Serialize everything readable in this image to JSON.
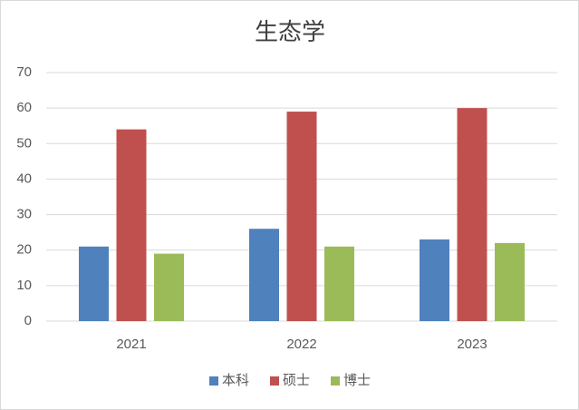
{
  "chart_data": {
    "type": "bar",
    "title": "生态学",
    "categories": [
      "2021",
      "2022",
      "2023"
    ],
    "series": [
      {
        "name": "本科",
        "color": "#4f81bd",
        "values": [
          21,
          26,
          23
        ]
      },
      {
        "name": "硕士",
        "color": "#c0504d",
        "values": [
          54,
          59,
          60
        ]
      },
      {
        "name": "博士",
        "color": "#9bbb59",
        "values": [
          19,
          21,
          22
        ]
      }
    ],
    "ylim": [
      0,
      70
    ],
    "yticks": [
      0,
      10,
      20,
      30,
      40,
      50,
      60,
      70
    ],
    "grid": true,
    "legend": "bottom"
  }
}
